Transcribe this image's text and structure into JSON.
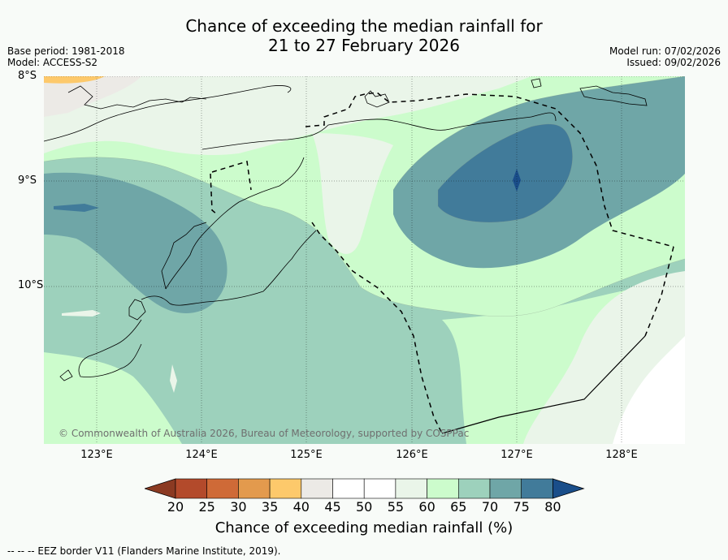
{
  "header": {
    "title_line1": "Chance of exceeding the median rainfall for",
    "title_line2": "21 to 27 February 2026",
    "base_period": "Base period: 1981-2018",
    "model": "Model: ACCESS-S2",
    "model_run": "Model run: 07/02/2026",
    "issued": "Issued: 09/02/2026"
  },
  "map": {
    "lat_labels": [
      "8°S",
      "9°S",
      "10°S"
    ],
    "lon_labels": [
      "123°E",
      "124°E",
      "125°E",
      "126°E",
      "127°E",
      "128°E"
    ],
    "copyright": "© Commonwealth of Australia 2026, Bureau of Meteorology, supported by COSPPac"
  },
  "colorbar": {
    "ticks": [
      "20",
      "25",
      "30",
      "35",
      "40",
      "45",
      "50",
      "55",
      "60",
      "65",
      "70",
      "75",
      "80"
    ],
    "colors": [
      "#8b3a22",
      "#b34a2b",
      "#cf6a37",
      "#e39a4d",
      "#fdc96b",
      "#eceae6",
      "#ffffff",
      "#ffffff",
      "#eaf5e9",
      "#ccfccc",
      "#9dd1bc",
      "#6fa6a7",
      "#417b9a",
      "#1a4e8a"
    ],
    "label": "Chance of exceeding median rainfall (%)"
  },
  "legend": {
    "eez": "--  --  -- EEZ border V11 (Flanders Marine Institute, 2019)."
  }
}
